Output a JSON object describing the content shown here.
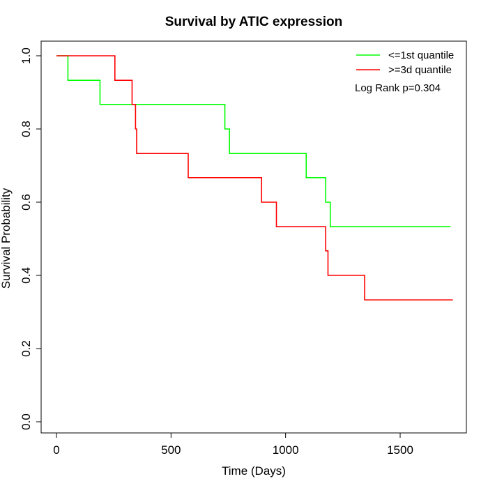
{
  "chart_data": {
    "type": "line",
    "subtype": "step",
    "title": "Survival by ATIC expression",
    "xlabel": "Time (Days)",
    "ylabel": "Survival Probability",
    "xlim": [
      0,
      1800
    ],
    "ylim": [
      0,
      1
    ],
    "x_ticks": [
      0,
      500,
      1000,
      1500
    ],
    "y_ticks": [
      0.0,
      0.2,
      0.4,
      0.6,
      0.8,
      1.0
    ],
    "x_tick_labels": [
      "0",
      "500",
      "1000",
      "1500"
    ],
    "y_tick_labels": [
      "0.0",
      "0.2",
      "0.4",
      "0.6",
      "0.8",
      "1.0"
    ],
    "grid": false,
    "legend_position": "top-right",
    "annotation": "Log Rank p=0.304",
    "series": [
      {
        "name": "<=1st quantile",
        "color": "#00ff00",
        "x": [
          0,
          50,
          190,
          735,
          755,
          1090,
          1175,
          1195,
          1720
        ],
        "y": [
          1.0,
          0.933,
          0.867,
          0.8,
          0.733,
          0.667,
          0.6,
          0.533,
          0.533
        ]
      },
      {
        "name": ">=3d quantile",
        "color": "#ff0000",
        "x": [
          0,
          255,
          330,
          345,
          350,
          575,
          895,
          960,
          1175,
          1185,
          1345,
          1730
        ],
        "y": [
          1.0,
          0.933,
          0.867,
          0.8,
          0.733,
          0.667,
          0.6,
          0.533,
          0.467,
          0.4,
          0.333,
          0.333
        ]
      }
    ]
  }
}
